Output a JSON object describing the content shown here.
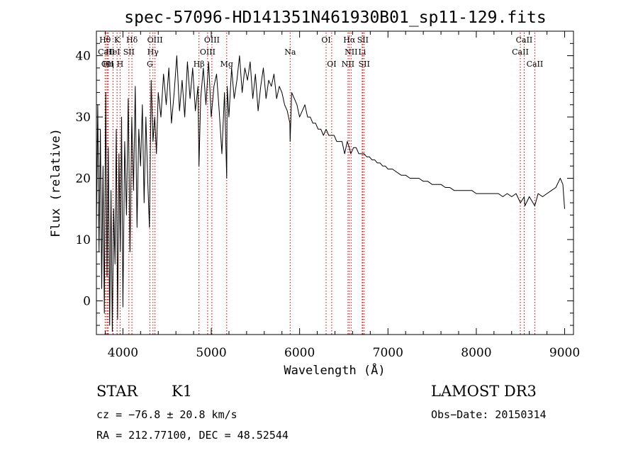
{
  "chart_data": {
    "type": "line",
    "title": "spec-57096-HD141351N461930B01_sp11-129.fits",
    "xlabel": "Wavelength (Å)",
    "ylabel": "Flux (relative)",
    "xlim": [
      3700,
      9100
    ],
    "ylim": [
      -5.5,
      44
    ],
    "x_ticks": [
      4000,
      5000,
      6000,
      7000,
      8000,
      9000
    ],
    "y_ticks": [
      0,
      10,
      20,
      30,
      40
    ],
    "series": [
      {
        "name": "flux",
        "x": [
          3700,
          3715,
          3730,
          3745,
          3760,
          3775,
          3790,
          3805,
          3820,
          3835,
          3850,
          3865,
          3880,
          3895,
          3910,
          3925,
          3940,
          3955,
          3970,
          3985,
          4000,
          4020,
          4040,
          4060,
          4080,
          4100,
          4120,
          4140,
          4160,
          4180,
          4200,
          4220,
          4240,
          4260,
          4280,
          4300,
          4320,
          4340,
          4360,
          4380,
          4400,
          4430,
          4460,
          4490,
          4520,
          4550,
          4580,
          4610,
          4640,
          4670,
          4700,
          4730,
          4760,
          4790,
          4820,
          4850,
          4861,
          4880,
          4910,
          4940,
          4970,
          5000,
          5030,
          5060,
          5090,
          5120,
          5150,
          5175,
          5180,
          5200,
          5230,
          5260,
          5290,
          5320,
          5350,
          5380,
          5410,
          5440,
          5470,
          5500,
          5530,
          5560,
          5590,
          5620,
          5650,
          5680,
          5710,
          5740,
          5770,
          5800,
          5830,
          5860,
          5890,
          5893,
          5910,
          5940,
          5970,
          6000,
          6030,
          6060,
          6090,
          6120,
          6150,
          6180,
          6210,
          6240,
          6270,
          6300,
          6330,
          6360,
          6390,
          6420,
          6450,
          6480,
          6510,
          6540,
          6563,
          6580,
          6610,
          6640,
          6670,
          6700,
          6730,
          6760,
          6790,
          6820,
          6850,
          6880,
          6910,
          6940,
          6970,
          7000,
          7050,
          7100,
          7150,
          7200,
          7250,
          7300,
          7350,
          7400,
          7450,
          7500,
          7550,
          7600,
          7650,
          7700,
          7750,
          7800,
          7850,
          7900,
          7950,
          8000,
          8050,
          8100,
          8150,
          8200,
          8250,
          8300,
          8350,
          8400,
          8450,
          8500,
          8542,
          8550,
          8600,
          8662,
          8700,
          8750,
          8800,
          8850,
          8900,
          8950,
          8980,
          9000
        ],
        "values": [
          12,
          32,
          8,
          28,
          2,
          22,
          -2,
          34,
          4,
          25,
          -4,
          18,
          -5,
          15,
          6,
          28,
          -3,
          24,
          8,
          30,
          -1,
          26,
          14,
          33,
          8,
          30,
          18,
          35,
          12,
          28,
          22,
          32,
          16,
          30,
          20,
          12,
          36,
          26,
          30,
          24,
          34,
          30,
          37,
          32,
          38,
          29,
          34,
          40,
          31,
          36,
          30,
          39,
          33,
          38,
          31,
          35,
          22,
          33,
          38,
          32,
          39,
          30,
          35,
          37,
          31,
          24,
          34,
          20,
          35,
          30,
          38,
          33,
          36,
          40,
          34,
          38,
          36,
          39,
          33,
          37,
          31,
          35,
          38,
          33,
          36,
          35,
          37,
          33,
          35,
          34,
          32,
          31,
          29,
          26,
          34,
          33,
          32,
          30,
          31,
          32,
          30,
          30,
          29,
          29,
          28,
          28,
          27,
          28,
          27,
          27,
          27,
          26,
          26,
          26,
          24,
          26,
          25,
          24,
          25,
          25,
          24,
          24,
          24,
          23.5,
          23.5,
          23,
          23,
          22.5,
          22.5,
          22,
          22,
          21.5,
          21.5,
          21,
          20.5,
          20.5,
          20,
          20,
          20,
          19.5,
          19.5,
          19,
          19,
          19,
          18.5,
          18.5,
          18,
          18,
          18,
          18,
          18,
          17.5,
          17.5,
          17.5,
          17.5,
          17.5,
          17.5,
          17,
          17.5,
          17,
          17.5,
          16,
          17,
          15.5,
          17,
          15.5,
          17.5,
          17,
          17.5,
          18,
          18.5,
          20,
          19,
          15
        ]
      }
    ],
    "annotations": [
      {
        "label": "Hθ",
        "x": 3798,
        "row": 1
      },
      {
        "label": "CaII",
        "x": 3812,
        "row": 2
      },
      {
        "label": "OII",
        "x": 3826,
        "row": 3
      },
      {
        "label": "HeI",
        "x": 3888,
        "row": 2
      },
      {
        "label": "Hη",
        "x": 3835,
        "row": 3
      },
      {
        "label": "K",
        "x": 3934,
        "row": 1
      },
      {
        "label": "SII",
        "x": 4068,
        "row": 2
      },
      {
        "label": "H",
        "x": 3968,
        "row": 3
      },
      {
        "label": "Hδ",
        "x": 4102,
        "row": 1
      },
      {
        "label": "OIII",
        "x": 4363,
        "row": 1
      },
      {
        "label": "Hγ",
        "x": 4340,
        "row": 2
      },
      {
        "label": "G",
        "x": 4305,
        "row": 3
      },
      {
        "label": "Hβ",
        "x": 4861,
        "row": 3
      },
      {
        "label": "OIII",
        "x": 5007,
        "row": 1
      },
      {
        "label": "OIII",
        "x": 4959,
        "row": 2
      },
      {
        "label": "Mg",
        "x": 5175,
        "row": 3
      },
      {
        "label": "Na",
        "x": 5893,
        "row": 2
      },
      {
        "label": "OI",
        "x": 6300,
        "row": 1
      },
      {
        "label": "OI",
        "x": 6363,
        "row": 3
      },
      {
        "label": "Hα",
        "x": 6563,
        "row": 1
      },
      {
        "label": "SII",
        "x": 6716,
        "row": 1
      },
      {
        "label": "NII",
        "x": 6583,
        "row": 2
      },
      {
        "label": "Li",
        "x": 6708,
        "row": 2
      },
      {
        "label": "NII",
        "x": 6548,
        "row": 3
      },
      {
        "label": "SII",
        "x": 6731,
        "row": 3
      },
      {
        "label": "CaII",
        "x": 8542,
        "row": 1
      },
      {
        "label": "CaII",
        "x": 8498,
        "row": 2
      },
      {
        "label": "CaII",
        "x": 8662,
        "row": 3
      }
    ]
  },
  "info": {
    "obj_class": "STAR",
    "subclass": "K1",
    "survey": "LAMOST DR3",
    "cz": "cz = −76.8 ± 20.8 km/s",
    "obs_date": "Obs−Date: 20150314",
    "coords": "RA = 212.77100, DEC =  48.52544"
  }
}
